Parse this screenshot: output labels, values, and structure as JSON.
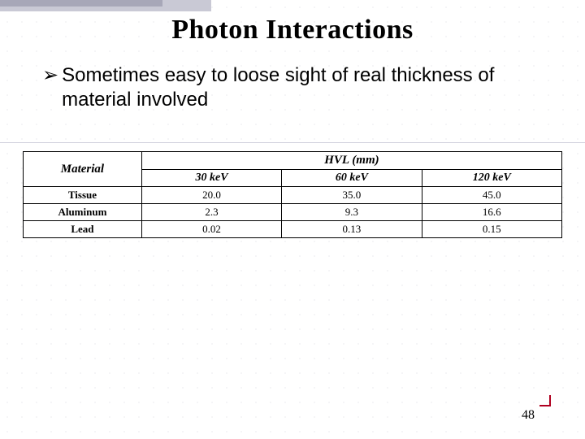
{
  "title": "Photon Interactions",
  "bullet": {
    "glyph": "➢",
    "text": "Sometimes easy to loose sight of real thickness of material  involved"
  },
  "hvl_table": {
    "type": "table",
    "header_material": "Material",
    "header_hvl": "HVL (mm)",
    "energy_columns": [
      "30 keV",
      "60 keV",
      "120 keV"
    ],
    "rows": [
      {
        "label": "Tissue",
        "values": [
          "20.0",
          "35.0",
          "45.0"
        ]
      },
      {
        "label": "Aluminum",
        "values": [
          "2.3",
          "9.3",
          "16.6"
        ]
      },
      {
        "label": "Lead",
        "values": [
          "0.02",
          "0.13",
          "0.15"
        ]
      }
    ],
    "border_color": "#000000",
    "background_color": "#ffffff",
    "header_font_style": "italic bold",
    "cell_fontsize_pt": 13
  },
  "page_number": "48",
  "style": {
    "grid_dot_color": "#d8d8e0",
    "topbar_outer_color": "#c9c9d5",
    "topbar_inner_color": "#a7a7b8",
    "accent_red": "#b00020"
  }
}
